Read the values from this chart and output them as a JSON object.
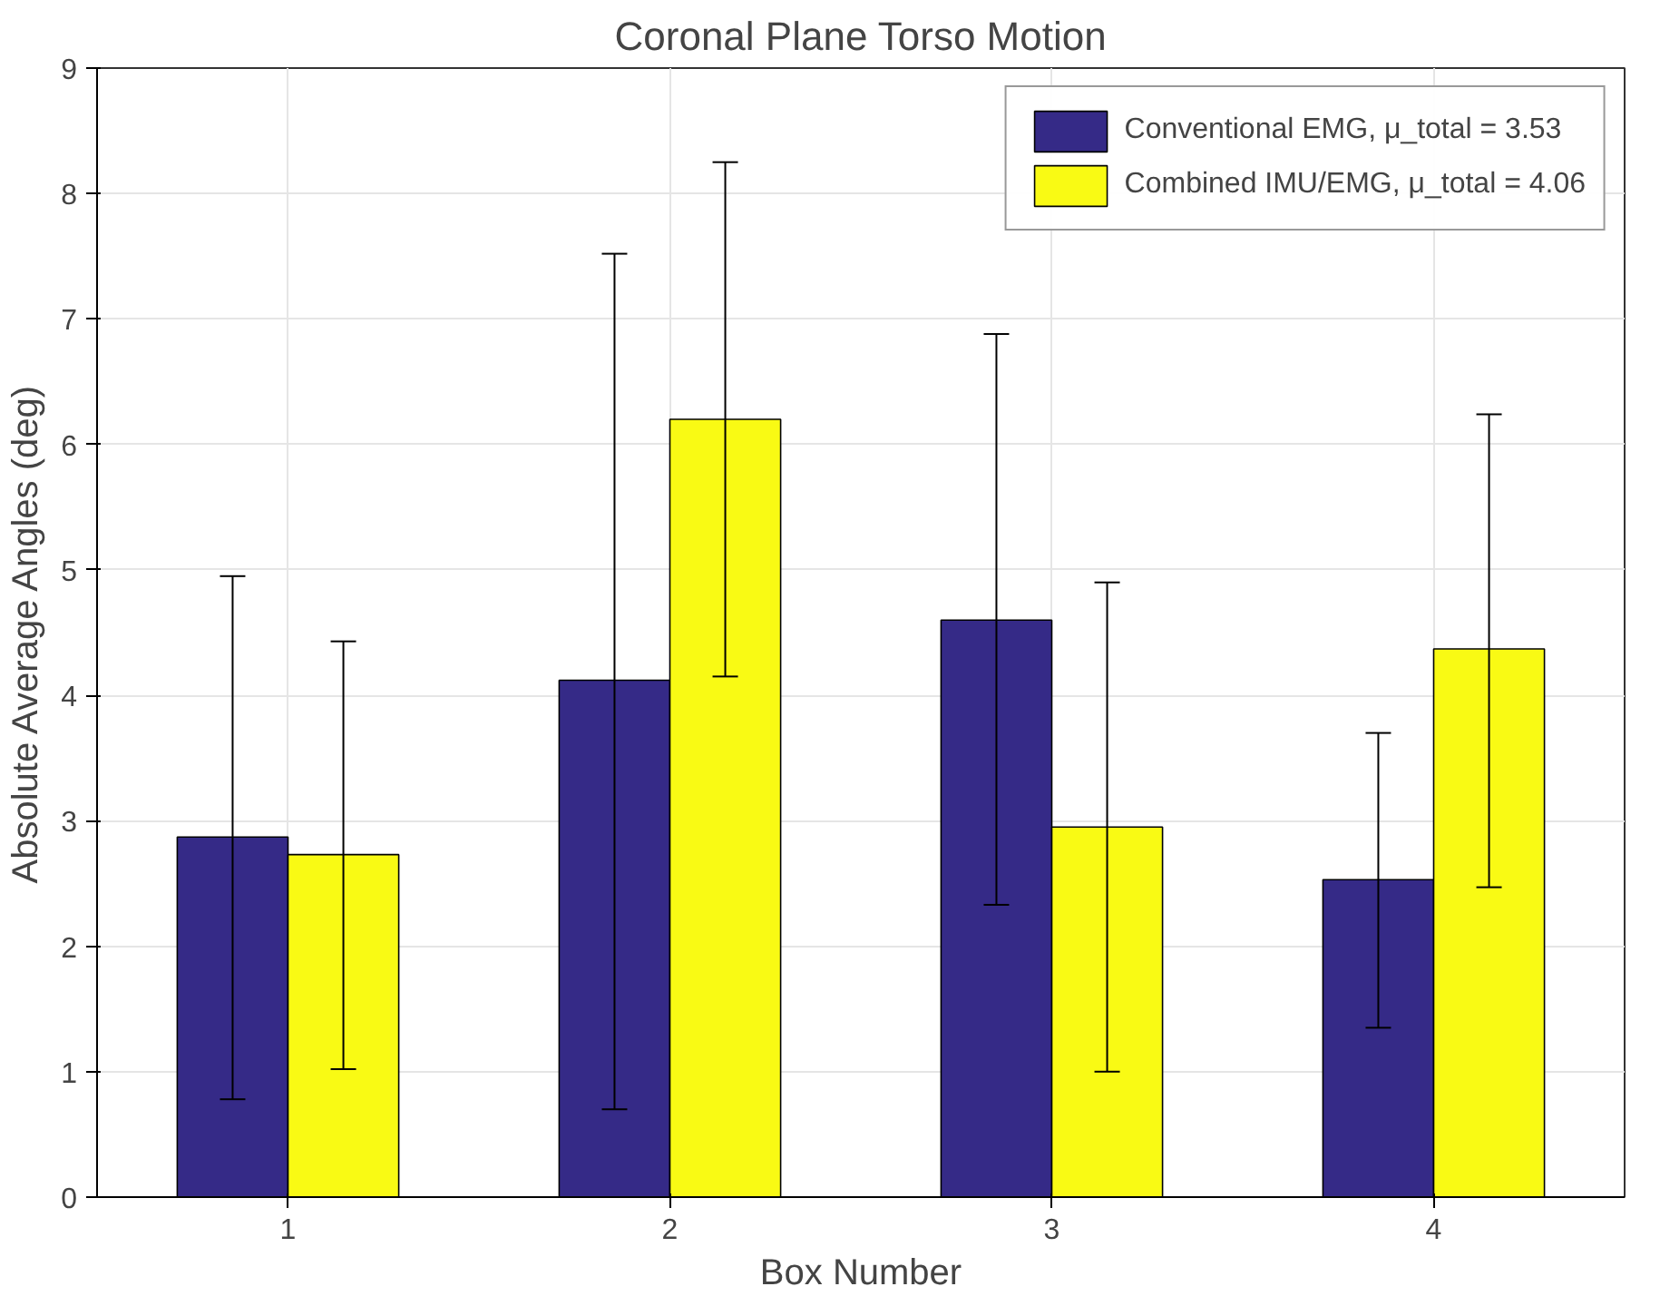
{
  "chart_data": {
    "type": "bar",
    "title": "Coronal Plane Torso Motion",
    "xlabel": "Box Number",
    "ylabel": "Absolute Average Angles (deg)",
    "categories": [
      "1",
      "2",
      "3",
      "4"
    ],
    "series": [
      {
        "name": "Conventional EMG, μ_total = 3.53",
        "color": "#352a87",
        "values": [
          2.87,
          4.12,
          4.6,
          2.53
        ],
        "errors": [
          [
            0.78,
            4.95
          ],
          [
            0.7,
            7.52
          ],
          [
            2.33,
            6.88
          ],
          [
            1.35,
            3.7
          ]
        ]
      },
      {
        "name": "Combined IMU/EMG, μ_total = 4.06",
        "color": "#f9fa14",
        "values": [
          2.73,
          6.2,
          2.95,
          4.37
        ],
        "errors": [
          [
            1.02,
            4.43
          ],
          [
            4.15,
            8.25
          ],
          [
            1.0,
            4.9
          ],
          [
            2.47,
            6.24
          ]
        ]
      }
    ],
    "ylim": [
      0,
      9
    ],
    "yticks": [
      0,
      1,
      2,
      3,
      4,
      5,
      6,
      7,
      8,
      9
    ],
    "grid": true,
    "legend": "top right"
  }
}
